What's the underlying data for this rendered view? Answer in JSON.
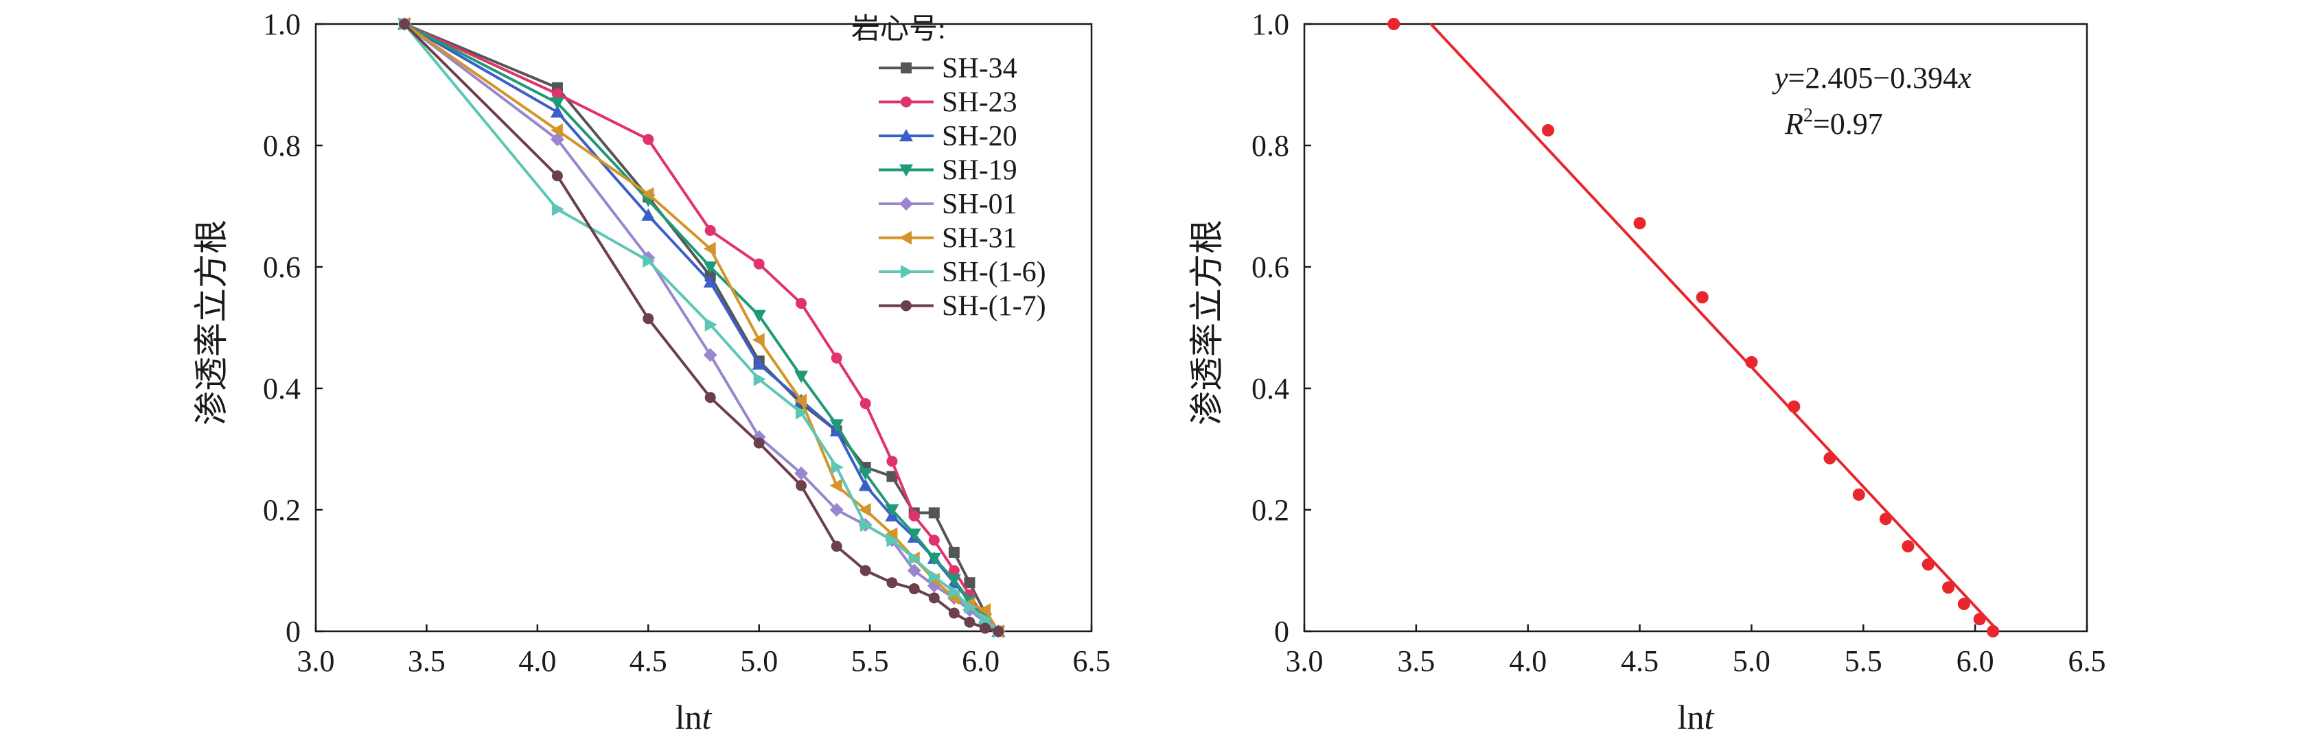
{
  "chart_data": [
    {
      "type": "line",
      "xlabel_prefix": "ln",
      "xlabel_var": "t",
      "ylabel": "渗透率立方根",
      "xlim": [
        3.0,
        6.5
      ],
      "ylim": [
        0,
        1.0
      ],
      "xticks": [
        "3.0",
        "3.5",
        "4.0",
        "4.5",
        "5.0",
        "5.5",
        "6.0",
        "6.5"
      ],
      "yticks": [
        "0",
        "0.2",
        "0.4",
        "0.6",
        "0.8",
        "1.0"
      ],
      "legend_title": "岩心号:",
      "legend_position": "top-right",
      "series": [
        {
          "name": "SH-34",
          "color": "#555555",
          "marker": "square",
          "x": [
            3.4,
            4.09,
            4.5,
            4.78,
            5.0,
            5.19,
            5.35,
            5.48,
            5.6,
            5.7,
            5.79,
            5.88,
            5.95,
            6.02,
            6.08
          ],
          "y": [
            1.0,
            0.895,
            0.715,
            0.585,
            0.445,
            0.375,
            0.33,
            0.27,
            0.255,
            0.195,
            0.195,
            0.13,
            0.08,
            0.03,
            0.0
          ]
        },
        {
          "name": "SH-23",
          "color": "#e0336b",
          "marker": "circle",
          "x": [
            3.4,
            4.09,
            4.5,
            4.78,
            5.0,
            5.19,
            5.35,
            5.48,
            5.6,
            5.7,
            5.79,
            5.88,
            5.95,
            6.02,
            6.08
          ],
          "y": [
            1.0,
            0.885,
            0.81,
            0.66,
            0.605,
            0.54,
            0.45,
            0.375,
            0.28,
            0.19,
            0.15,
            0.1,
            0.06,
            0.02,
            0.0
          ]
        },
        {
          "name": "SH-20",
          "color": "#3a5fc8",
          "marker": "triangle-up",
          "x": [
            3.4,
            4.09,
            4.5,
            4.78,
            5.0,
            5.19,
            5.35,
            5.48,
            5.6,
            5.7,
            5.79,
            5.88,
            5.95,
            6.02,
            6.08
          ],
          "y": [
            1.0,
            0.855,
            0.685,
            0.575,
            0.44,
            0.38,
            0.33,
            0.24,
            0.19,
            0.155,
            0.12,
            0.08,
            0.05,
            0.02,
            0.0
          ]
        },
        {
          "name": "SH-19",
          "color": "#1f9a78",
          "marker": "triangle-down",
          "x": [
            3.4,
            4.09,
            4.5,
            4.78,
            5.0,
            5.19,
            5.35,
            5.48,
            5.6,
            5.7,
            5.79,
            5.88,
            5.95,
            6.02,
            6.08
          ],
          "y": [
            1.0,
            0.87,
            0.71,
            0.6,
            0.52,
            0.42,
            0.34,
            0.26,
            0.2,
            0.16,
            0.12,
            0.085,
            0.05,
            0.02,
            0.0
          ]
        },
        {
          "name": "SH-01",
          "color": "#9a86d0",
          "marker": "diamond",
          "x": [
            3.4,
            4.09,
            4.5,
            4.78,
            5.0,
            5.19,
            5.35,
            5.48,
            5.6,
            5.7,
            5.79,
            5.88,
            5.95,
            6.02,
            6.08
          ],
          "y": [
            1.0,
            0.81,
            0.615,
            0.455,
            0.32,
            0.26,
            0.2,
            0.175,
            0.15,
            0.1,
            0.075,
            0.055,
            0.035,
            0.015,
            0.0
          ]
        },
        {
          "name": "SH-31",
          "color": "#d4942a",
          "marker": "triangle-left",
          "x": [
            3.4,
            4.09,
            4.5,
            4.78,
            5.0,
            5.19,
            5.35,
            5.48,
            5.6,
            5.7,
            5.79,
            5.88,
            5.95,
            6.02,
            6.08
          ],
          "y": [
            1.0,
            0.825,
            0.72,
            0.63,
            0.48,
            0.38,
            0.24,
            0.2,
            0.16,
            0.12,
            0.085,
            0.055,
            0.045,
            0.035,
            0.0
          ]
        },
        {
          "name": "SH-(1-6)",
          "color": "#5cc7b4",
          "marker": "triangle-right",
          "x": [
            3.4,
            4.09,
            4.5,
            4.78,
            5.0,
            5.19,
            5.35,
            5.48,
            5.6,
            5.7,
            5.79,
            5.88,
            5.95,
            6.02,
            6.08
          ],
          "y": [
            1.0,
            0.695,
            0.61,
            0.505,
            0.415,
            0.36,
            0.27,
            0.175,
            0.15,
            0.12,
            0.09,
            0.065,
            0.04,
            0.02,
            0.0
          ]
        },
        {
          "name": "SH-(1-7)",
          "color": "#6b3f4c",
          "marker": "circle",
          "x": [
            3.4,
            4.09,
            4.5,
            4.78,
            5.0,
            5.19,
            5.35,
            5.48,
            5.6,
            5.7,
            5.79,
            5.88,
            5.95,
            6.02,
            6.08
          ],
          "y": [
            1.0,
            0.75,
            0.515,
            0.385,
            0.31,
            0.24,
            0.14,
            0.1,
            0.08,
            0.07,
            0.055,
            0.03,
            0.015,
            0.005,
            0.0
          ]
        }
      ]
    },
    {
      "type": "scatter",
      "xlabel_prefix": "ln",
      "xlabel_var": "t",
      "ylabel": "渗透率立方根",
      "xlim": [
        3.0,
        6.5
      ],
      "ylim": [
        0,
        1.0
      ],
      "xticks": [
        "3.0",
        "3.5",
        "4.0",
        "4.5",
        "5.0",
        "5.5",
        "6.0",
        "6.5"
      ],
      "yticks": [
        "0",
        "0.2",
        "0.4",
        "0.6",
        "0.8",
        "1.0"
      ],
      "point_color": "#e8262c",
      "line_color": "#e8262c",
      "points": {
        "x": [
          3.4,
          4.09,
          4.5,
          4.78,
          5.0,
          5.19,
          5.35,
          5.48,
          5.6,
          5.7,
          5.79,
          5.88,
          5.95,
          6.02,
          6.08
        ],
        "y": [
          1.0,
          0.825,
          0.672,
          0.55,
          0.443,
          0.37,
          0.285,
          0.225,
          0.185,
          0.14,
          0.11,
          0.072,
          0.045,
          0.02,
          0.0
        ]
      },
      "fit": {
        "intercept": 2.405,
        "slope": -0.394,
        "x_range": [
          3.565,
          6.105
        ]
      },
      "equation": {
        "y_var": "y",
        "eq_body": "=2.405−0.394",
        "x_var": "x",
        "r_var": "R",
        "r_sup": "2",
        "r_value": "=0.97"
      }
    }
  ]
}
